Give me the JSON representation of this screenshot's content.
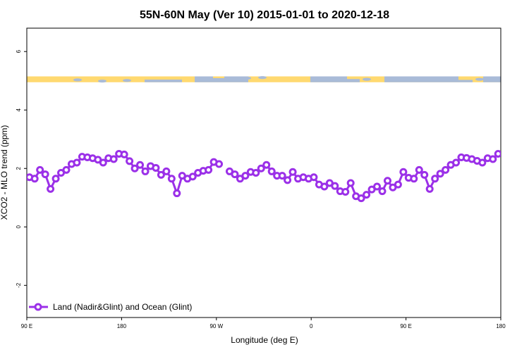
{
  "chart_data": {
    "type": "line",
    "title": "55N-60N May (Ver 10)   2015-01-01 to 2020-12-18",
    "xlabel": "Longitude (deg E)",
    "ylabel": "XCO2 - MLO trend (ppm)",
    "x_ticks": [
      {
        "value": 90,
        "label": "90 E"
      },
      {
        "value": 180,
        "label": "180"
      },
      {
        "value": 270,
        "label": "90 W"
      },
      {
        "value": 360,
        "label": "0"
      },
      {
        "value": 450,
        "label": "90 E"
      },
      {
        "value": 540,
        "label": "180"
      }
    ],
    "xlim": [
      90,
      540
    ],
    "y_ticks": [
      -2,
      0,
      2,
      4,
      6
    ],
    "ylim": [
      -3.1,
      6.8
    ],
    "grid": false,
    "legend_position": "bottom-left",
    "map_strip": {
      "y_range": [
        4.95,
        5.15
      ],
      "land_color": "#FFD970",
      "ocean_color": "#A9BBD8"
    },
    "series": [
      {
        "name": "Land (Nadir&Glint) and Ocean (Glint)",
        "color": "#9B30E8",
        "segments": [
          {
            "x": [
              92.5,
              97.5,
              102.5,
              107.5,
              112.5,
              117.5,
              122.5,
              127.5,
              132.5,
              137.5,
              142.5,
              147.5,
              152.5,
              157.5,
              162.5,
              167.5,
              172.5,
              177.5,
              182.5,
              187.5,
              192.5,
              197.5,
              202.5,
              207.5,
              212.5,
              217.5,
              222.5,
              227.5,
              232.5,
              237.5,
              242.5,
              247.5,
              252.5,
              257.5,
              262.5,
              267.5,
              272.5
            ],
            "y": [
              1.7,
              1.65,
              1.95,
              1.8,
              1.3,
              1.65,
              1.85,
              1.95,
              2.15,
              2.2,
              2.4,
              2.38,
              2.35,
              2.3,
              2.2,
              2.35,
              2.32,
              2.5,
              2.48,
              2.25,
              2.0,
              2.12,
              1.9,
              2.08,
              2.02,
              1.78,
              1.9,
              1.65,
              1.15,
              1.75,
              1.65,
              1.72,
              1.85,
              1.92,
              1.95,
              2.22,
              2.15
            ]
          },
          {
            "x": [
              282.5,
              287.5,
              292.5,
              297.5,
              302.5,
              307.5,
              312.5,
              317.5,
              322.5,
              327.5,
              332.5,
              337.5,
              342.5,
              347.5,
              352.5,
              357.5,
              362.5,
              367.5,
              372.5,
              377.5,
              382.5,
              387.5,
              392.5,
              397.5,
              402.5,
              407.5,
              412.5,
              417.5,
              422.5,
              427.5,
              432.5,
              437.5,
              442.5,
              447.5,
              452.5,
              457.5,
              462.5,
              467.5,
              472.5,
              477.5,
              482.5,
              487.5,
              492.5,
              497.5,
              502.5,
              507.5,
              512.5,
              517.5,
              522.5,
              527.5,
              532.5,
              537.5
            ],
            "y": [
              1.9,
              1.8,
              1.65,
              1.75,
              1.88,
              1.85,
              2.0,
              2.12,
              1.9,
              1.75,
              1.75,
              1.6,
              1.88,
              1.65,
              1.7,
              1.65,
              1.7,
              1.45,
              1.38,
              1.5,
              1.4,
              1.22,
              1.2,
              1.5,
              1.05,
              0.98,
              1.1,
              1.28,
              1.38,
              1.22,
              1.58,
              1.35,
              1.45,
              1.88,
              1.68,
              1.65,
              1.95,
              1.78,
              1.3,
              1.65,
              1.82,
              1.95,
              2.12,
              2.2,
              2.38,
              2.36,
              2.32,
              2.26,
              2.2,
              2.35,
              2.32,
              2.5
            ]
          }
        ]
      }
    ]
  }
}
